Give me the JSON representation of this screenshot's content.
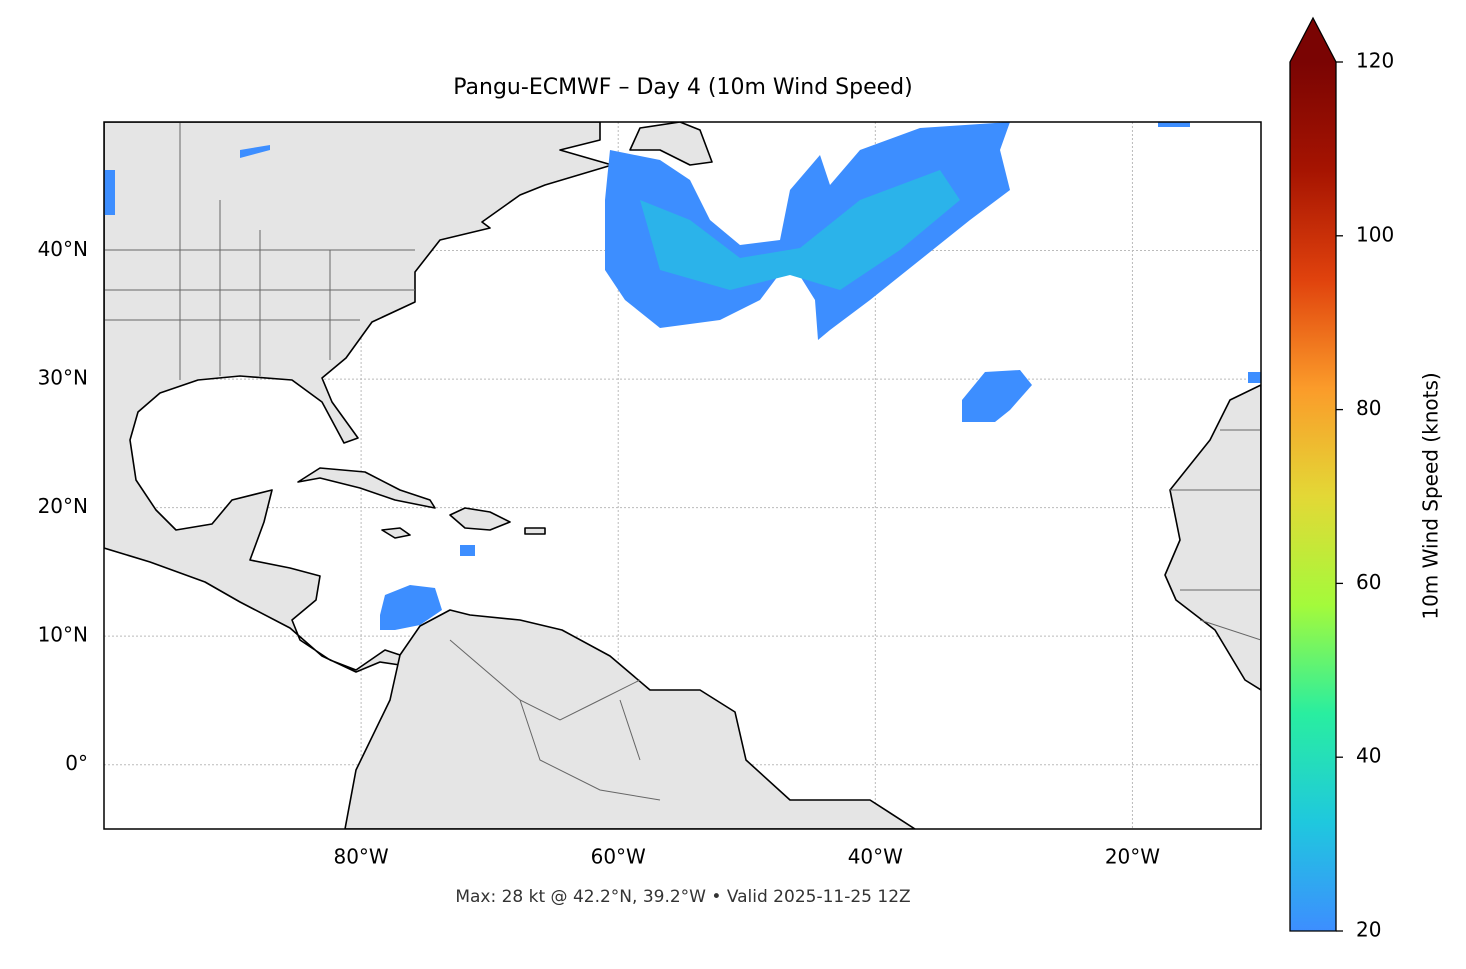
{
  "map": {
    "title": "Pangu-ECMWF – Day 4 (10m Wind Speed)",
    "extent": [
      -100,
      -10,
      -5,
      50
    ],
    "lon_ticks": [
      {
        "value": -80,
        "label": "80°W"
      },
      {
        "value": -60,
        "label": "60°W"
      },
      {
        "value": -40,
        "label": "40°W"
      },
      {
        "value": -20,
        "label": "20°W"
      }
    ],
    "lat_ticks": [
      {
        "value": 0,
        "label": "0°"
      },
      {
        "value": 10,
        "label": "10°N"
      },
      {
        "value": 20,
        "label": "20°N"
      },
      {
        "value": 30,
        "label": "30°N"
      },
      {
        "value": 40,
        "label": "40°N"
      }
    ],
    "footnote": "Max: 28 kt @ 42.2°N, 39.2°W • Valid 2025-11-25 12Z",
    "colorbar": {
      "label": "10m Wind Speed (knots)",
      "lim": [
        20,
        120
      ],
      "ticks": [
        20,
        40,
        60,
        80,
        100,
        120
      ],
      "colors": [
        "#3d8eff",
        "#1fc8de",
        "#29eea0",
        "#a4fa3b",
        "#e3d836",
        "#fb9b2a",
        "#e0420d",
        "#a61401",
        "#7a0403"
      ]
    }
  }
}
